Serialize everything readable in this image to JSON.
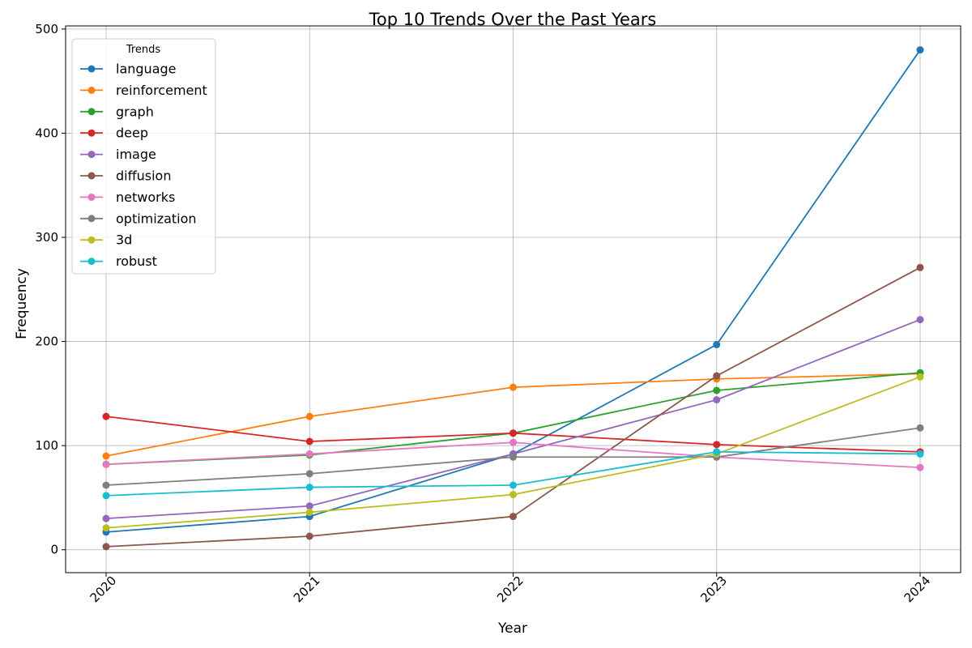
{
  "chart_data": {
    "type": "line",
    "title": "Top 10 Trends Over the Past Years",
    "xlabel": "Year",
    "ylabel": "Frequency",
    "x": [
      "2020",
      "2021",
      "2022",
      "2023",
      "2024"
    ],
    "ylim": [
      -22,
      503
    ],
    "y_ticks": [
      0,
      100,
      200,
      300,
      400,
      500
    ],
    "grid": true,
    "legend": {
      "title": "Trends",
      "position": "top-left"
    },
    "series": [
      {
        "name": "language",
        "color": "#1f77b4",
        "values": [
          17,
          32,
          92,
          197,
          480
        ]
      },
      {
        "name": "reinforcement",
        "color": "#ff7f0e",
        "values": [
          90,
          128,
          156,
          164,
          169
        ]
      },
      {
        "name": "graph",
        "color": "#2ca02c",
        "values": [
          82,
          91,
          112,
          153,
          170
        ]
      },
      {
        "name": "deep",
        "color": "#d62728",
        "values": [
          128,
          104,
          112,
          101,
          94
        ]
      },
      {
        "name": "image",
        "color": "#9467bd",
        "values": [
          30,
          42,
          92,
          144,
          221
        ]
      },
      {
        "name": "diffusion",
        "color": "#8c564b",
        "values": [
          3,
          13,
          32,
          167,
          271
        ]
      },
      {
        "name": "networks",
        "color": "#e377c2",
        "values": [
          82,
          92,
          103,
          89,
          79
        ]
      },
      {
        "name": "optimization",
        "color": "#7f7f7f",
        "values": [
          62,
          73,
          89,
          89,
          117
        ]
      },
      {
        "name": "3d",
        "color": "#bcbd22",
        "values": [
          21,
          36,
          53,
          92,
          166
        ]
      },
      {
        "name": "robust",
        "color": "#17becf",
        "values": [
          52,
          60,
          62,
          94,
          92
        ]
      }
    ]
  }
}
